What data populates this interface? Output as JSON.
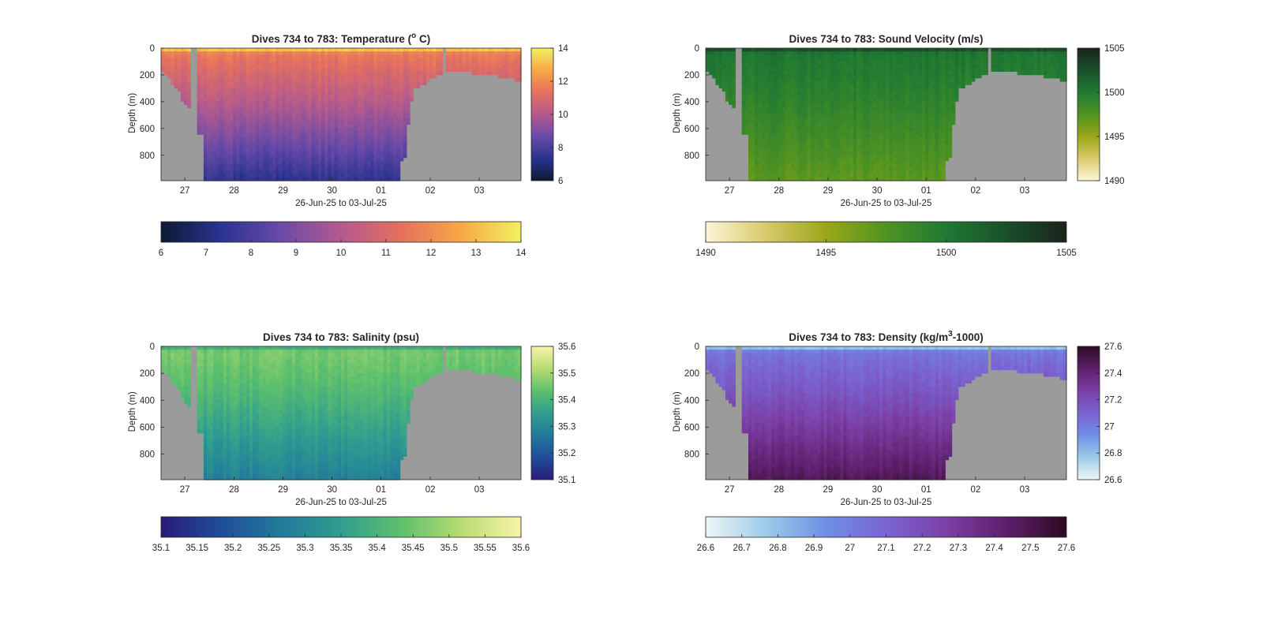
{
  "chart_data": [
    {
      "type": "heatmap",
      "title": "Dives 734 to 783: Temperature (° C)",
      "title_parts": [
        "Dives 734 to 783: Temperature (",
        "o",
        " C)"
      ],
      "xlabel": "26-Jun-25 to 03-Jul-25",
      "ylabel": "Depth (m)",
      "xticks": [
        "27",
        "28",
        "29",
        "30",
        "01",
        "02",
        "03"
      ],
      "yticks": [
        "0",
        "200",
        "400",
        "600",
        "800"
      ],
      "ylim": [
        0,
        990
      ],
      "colorbar_right": {
        "range": [
          6,
          14
        ],
        "ticks": [
          "14",
          "12",
          "10",
          "8",
          "6"
        ]
      },
      "colorbar_bottom": {
        "range": [
          6,
          14
        ],
        "ticks": [
          "6",
          "7",
          "8",
          "9",
          "10",
          "11",
          "12",
          "13",
          "14"
        ]
      },
      "colormap": [
        "#0d1a33",
        "#2a3390",
        "#6a4aa8",
        "#b35a8e",
        "#e5705e",
        "#f7a847",
        "#f2f05f"
      ],
      "profile": {
        "surface": 13.8,
        "upper": 11.6,
        "mid": 9.8,
        "deep": 7.4
      },
      "color_grid": "none"
    },
    {
      "type": "heatmap",
      "title": "Dives 734 to 783: Sound Velocity (m/s)",
      "title_parts": [
        "Dives 734 to 783: Sound Velocity (m/s)",
        "",
        ""
      ],
      "xlabel": "26-Jun-25 to 03-Jul-25",
      "ylabel": "Depth (m)",
      "xticks": [
        "27",
        "28",
        "29",
        "30",
        "01",
        "02",
        "03"
      ],
      "yticks": [
        "0",
        "200",
        "400",
        "600",
        "800"
      ],
      "ylim": [
        0,
        990
      ],
      "colorbar_right": {
        "range": [
          1490,
          1505
        ],
        "ticks": [
          "1505",
          "1500",
          "1495",
          "1490"
        ]
      },
      "colorbar_bottom": {
        "range": [
          1490,
          1505
        ],
        "ticks": [
          "1490",
          "1495",
          "1500",
          "1505"
        ]
      },
      "colormap": [
        "#fcf6d6",
        "#d9c96b",
        "#9aa718",
        "#4f9322",
        "#1f7a33",
        "#1a4f2a",
        "#1b241c"
      ],
      "profile": {
        "surface": 1503.5,
        "upper": 1500.2,
        "mid": 1499.2,
        "deep": 1497.0
      },
      "color_grid": "none"
    },
    {
      "type": "heatmap",
      "title": "Dives 734 to 783: Salinity (psu)",
      "title_parts": [
        "Dives 734 to 783: Salinity (psu)",
        "",
        ""
      ],
      "xlabel": "26-Jun-25 to 03-Jul-25",
      "ylabel": "Depth (m)",
      "xticks": [
        "27",
        "28",
        "29",
        "30",
        "01",
        "02",
        "03"
      ],
      "yticks": [
        "0",
        "200",
        "400",
        "600",
        "800"
      ],
      "ylim": [
        0,
        990
      ],
      "colorbar_right": {
        "range": [
          35.1,
          35.6
        ],
        "ticks": [
          "35.6",
          "35.5",
          "35.4",
          "35.3",
          "35.2",
          "35.1"
        ]
      },
      "colorbar_bottom": {
        "range": [
          35.1,
          35.6
        ],
        "ticks": [
          "35.1",
          "35.15",
          "35.2",
          "35.25",
          "35.3",
          "35.35",
          "35.4",
          "35.45",
          "35.5",
          "35.55",
          "35.6"
        ]
      },
      "colormap": [
        "#2a1b78",
        "#1f4e99",
        "#227a9a",
        "#2f9e8f",
        "#5ec06c",
        "#b6dc72",
        "#faf3a8"
      ],
      "profile": {
        "surface": 35.36,
        "upper": 35.46,
        "mid": 35.4,
        "deep": 35.28
      },
      "color_grid": "none"
    },
    {
      "type": "heatmap",
      "title": "Dives 734 to 783: Density (kg/m3-1000)",
      "title_parts": [
        "Dives 734 to 783: Density (kg/m",
        "3",
        "-1000)"
      ],
      "xlabel": "26-Jun-25 to 03-Jul-25",
      "ylabel": "Depth (m)",
      "xticks": [
        "27",
        "28",
        "29",
        "30",
        "01",
        "02",
        "03"
      ],
      "yticks": [
        "0",
        "200",
        "400",
        "600",
        "800"
      ],
      "ylim": [
        0,
        990
      ],
      "colorbar_right": {
        "range": [
          26.6,
          27.6
        ],
        "ticks": [
          "27.6",
          "27.4",
          "27.2",
          "27",
          "26.8",
          "26.6"
        ]
      },
      "colorbar_bottom": {
        "range": [
          26.6,
          27.6
        ],
        "ticks": [
          "26.6",
          "26.7",
          "26.8",
          "26.9",
          "27",
          "27.1",
          "27.2",
          "27.3",
          "27.4",
          "27.5",
          "27.6"
        ]
      },
      "colormap": [
        "#eef6f5",
        "#9ccbe8",
        "#6f8fe6",
        "#7a64d2",
        "#7b3fa5",
        "#5e1f6b",
        "#2d0a23"
      ],
      "profile": {
        "surface": 26.7,
        "upper": 27.03,
        "mid": 27.22,
        "deep": 27.48
      },
      "color_grid": "none"
    }
  ]
}
